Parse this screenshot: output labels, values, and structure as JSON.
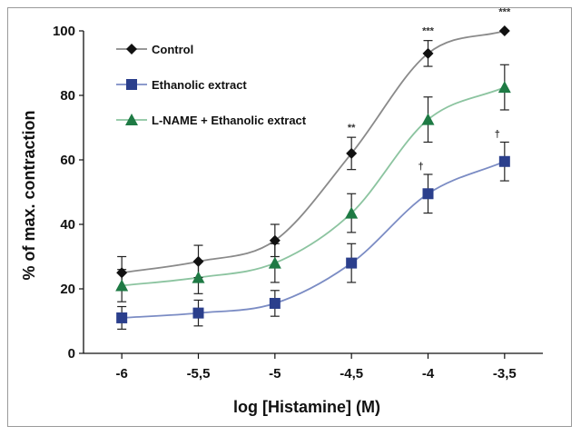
{
  "chart_data": {
    "type": "line",
    "xlabel": "log [Histamine] (M)",
    "ylabel": "% of max. contraction",
    "x": [
      -6,
      -5.5,
      -5,
      -4.5,
      -4,
      -3.5
    ],
    "x_tick_labels": [
      "-6",
      "-5,5",
      "-5",
      "-4,5",
      "-4",
      "-3,5"
    ],
    "xlim": [
      -6.25,
      -3.25
    ],
    "ylim": [
      0,
      100
    ],
    "y_ticks": [
      0,
      20,
      40,
      60,
      80,
      100
    ],
    "grid": false,
    "legend_position": "top-left",
    "series": [
      {
        "name": "Control",
        "marker": "diamond",
        "color": "#111111",
        "line_color": "#8a8a8a",
        "values": [
          25,
          28.5,
          35,
          62,
          93,
          100
        ],
        "errors": [
          5,
          5,
          5,
          5,
          4,
          0
        ]
      },
      {
        "name": "Ethanolic extract",
        "marker": "square",
        "color": "#2b3f8c",
        "line_color": "#7b8cc4",
        "values": [
          11,
          12.5,
          15.5,
          28,
          49.5,
          59.5
        ],
        "errors": [
          3.5,
          4,
          4,
          6,
          6,
          6
        ]
      },
      {
        "name": "L-NAME + Ethanolic extract",
        "marker": "triangle",
        "color": "#1e7a44",
        "line_color": "#8cc4a0",
        "values": [
          21,
          23.5,
          28,
          43.5,
          72.5,
          82.5
        ],
        "errors": [
          5,
          5,
          6,
          6,
          7,
          7
        ]
      }
    ],
    "annotations": [
      {
        "x": -4.5,
        "y": 69,
        "text": "**"
      },
      {
        "x": -4,
        "y": 99,
        "text": "***"
      },
      {
        "x": -3.5,
        "y": 105,
        "text": "***"
      },
      {
        "x": -4,
        "y": 57,
        "text": "†"
      },
      {
        "x": -3.5,
        "y": 67,
        "text": "†"
      }
    ]
  }
}
